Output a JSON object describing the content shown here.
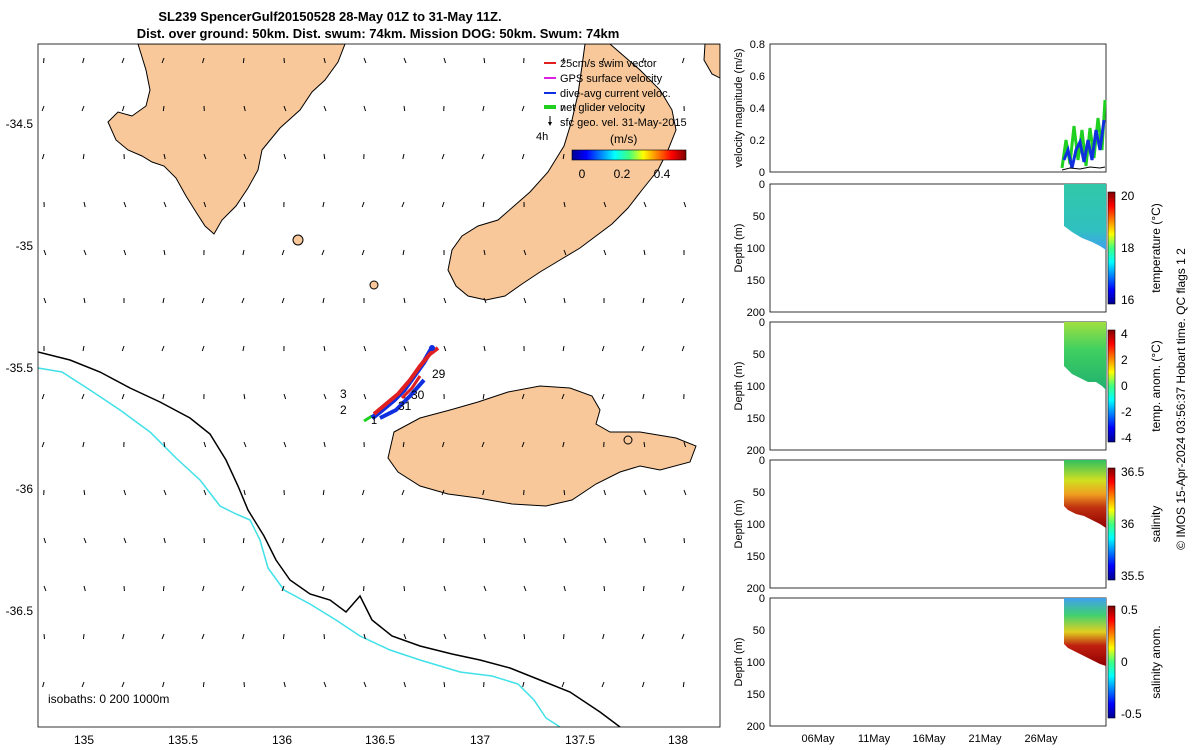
{
  "title": {
    "line1": "SL239 SpencerGulf20150528 28-May 01Z to 31-May 11Z.",
    "line2": "Dist. over ground: 50km. Dist. swum: 74km. Mission DOG: 50km. Swum: 74km"
  },
  "map": {
    "x_ticks": [
      "135",
      "135.5",
      "136",
      "136.5",
      "137",
      "137.5",
      "138"
    ],
    "y_ticks": [
      "-34.5",
      "-35",
      "-35.5",
      "-36",
      "-36.5"
    ],
    "isobaths_label": "isobaths: 0   200  1000m",
    "legend": {
      "items": [
        {
          "label": "25cm/s swim vector",
          "color": "#e02020"
        },
        {
          "label": "GPS surface velocity",
          "color": "#e020e0"
        },
        {
          "label": "dive-avg current veloc.",
          "color": "#1030e0"
        },
        {
          "label": "net glider velocity",
          "color": "#20d020"
        },
        {
          "label": "sfc geo. vel. 31-May-2015",
          "color": "#000000"
        }
      ],
      "offset_label": "4h"
    },
    "colorbar": {
      "title": "(m/s)",
      "ticks": [
        "0",
        "0.2",
        "0.4"
      ]
    },
    "track_labels": [
      "29",
      "30",
      "31",
      "3",
      "2",
      "1"
    ]
  },
  "panels": [
    {
      "ylabel": "velocity magnitude (m/s)",
      "yticks": [
        "0",
        "0.2",
        "0.4",
        "0.6",
        "0.8"
      ],
      "colorbar_label": "",
      "colorbar_ticks": []
    },
    {
      "ylabel": "Depth (m)",
      "yticks": [
        "0",
        "50",
        "100",
        "150",
        "200"
      ],
      "colorbar_label": "temperature (°C)",
      "colorbar_ticks": [
        "20",
        "18",
        "16"
      ]
    },
    {
      "ylabel": "Depth (m)",
      "yticks": [
        "0",
        "50",
        "100",
        "150",
        "200"
      ],
      "colorbar_label": "temp. anom. (°C)",
      "colorbar_ticks": [
        "4",
        "2",
        "0",
        "-2",
        "-4"
      ]
    },
    {
      "ylabel": "Depth (m)",
      "yticks": [
        "0",
        "50",
        "100",
        "150",
        "200"
      ],
      "colorbar_label": "salinity",
      "colorbar_ticks": [
        "36.5",
        "36",
        "35.5"
      ]
    },
    {
      "ylabel": "Depth (m)",
      "yticks": [
        "0",
        "50",
        "100",
        "150",
        "200"
      ],
      "colorbar_label": "salinity anom.",
      "colorbar_ticks": [
        "0.5",
        "0",
        "-0.5"
      ]
    }
  ],
  "time_axis": [
    "06May",
    "11May",
    "16May",
    "21May",
    "26May"
  ],
  "footer": "© IMOS 15-Apr-2024 03:56:37 Hobart time. QC flags 1  2",
  "colors": {
    "land": "#f8c89a",
    "coast": "#000000",
    "isobath_200": "#000000",
    "isobath_1000": "#40e0e8"
  }
}
